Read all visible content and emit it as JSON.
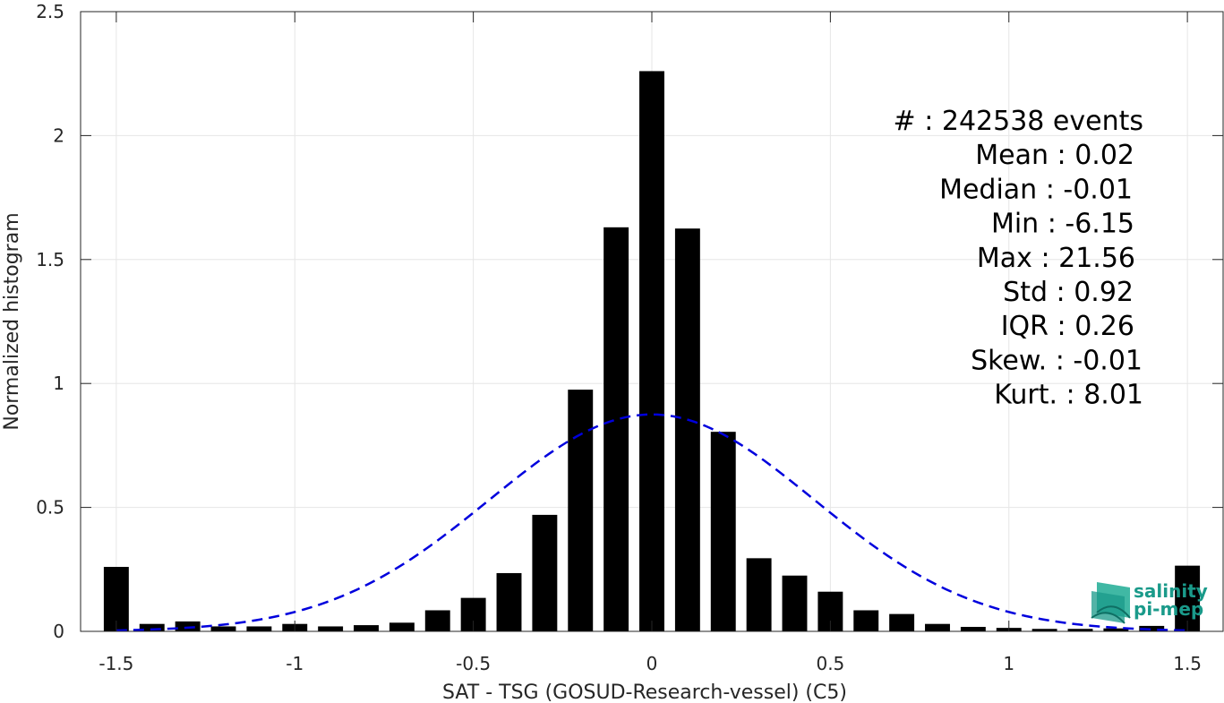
{
  "chart_data": {
    "type": "bar",
    "title": "",
    "xlabel": "SAT - TSG (GOSUD-Research-vessel) (C5)",
    "ylabel": "Normalized histogram",
    "xlim": [
      -1.6,
      1.6
    ],
    "ylim": [
      0,
      2.5
    ],
    "grid": true,
    "xticks": [
      -1.5,
      -1,
      -0.5,
      0,
      0.5,
      1,
      1.5
    ],
    "xtick_labels": [
      "-1.5",
      "-1",
      "-0.5",
      "0",
      "0.5",
      "1",
      "1.5"
    ],
    "yticks": [
      0,
      0.5,
      1,
      1.5,
      2,
      2.5
    ],
    "ytick_labels": [
      "0",
      "0.5",
      "1",
      "1.5",
      "2",
      "2.5"
    ],
    "bar_width": 0.07,
    "bar_color": "#000000",
    "bars": {
      "x": [
        -1.5,
        -1.4,
        -1.3,
        -1.2,
        -1.1,
        -1.0,
        -0.9,
        -0.8,
        -0.7,
        -0.6,
        -0.5,
        -0.4,
        -0.3,
        -0.2,
        -0.1,
        0.0,
        0.1,
        0.2,
        0.3,
        0.4,
        0.5,
        0.6,
        0.7,
        0.8,
        0.9,
        1.0,
        1.1,
        1.2,
        1.3,
        1.4,
        1.5
      ],
      "values": [
        0.26,
        0.03,
        0.04,
        0.02,
        0.02,
        0.03,
        0.02,
        0.025,
        0.035,
        0.085,
        0.135,
        0.235,
        0.47,
        0.975,
        1.63,
        2.26,
        1.625,
        0.805,
        0.295,
        0.225,
        0.16,
        0.085,
        0.07,
        0.03,
        0.018,
        0.014,
        0.01,
        0.01,
        0.012,
        0.022,
        0.265
      ]
    },
    "fit": {
      "type": "gaussian",
      "style": "dashed",
      "color": "#0000dd",
      "mean": 0.0,
      "std": 0.455,
      "peak": 0.875,
      "range": [
        -1.5,
        1.5
      ]
    },
    "annotations": [
      "#  : 242538 events",
      "Mean : 0.02",
      "Median : -0.01",
      "Min : -6.15",
      "Max : 21.56",
      "Std : 0.92",
      "IQR : 0.26",
      "Skew. : -0.01",
      "Kurt. : 8.01"
    ]
  },
  "logo": {
    "line1": "salinity",
    "line2": "pi-mep",
    "color": "#1a9a8a"
  }
}
